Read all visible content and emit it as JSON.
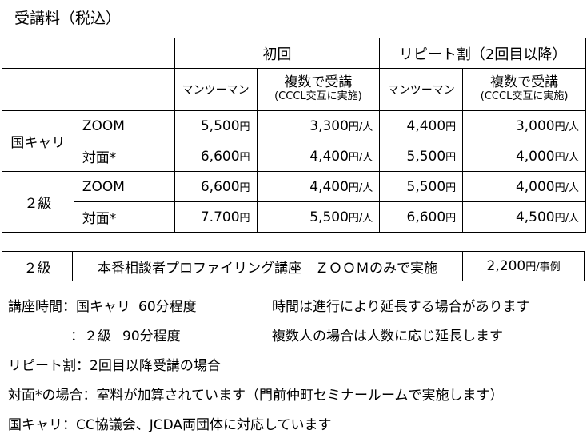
{
  "title": "受講料（税込）",
  "table": {
    "header_initial": "初回",
    "header_repeat": "リピート割（2回目以降）",
    "col_one_on_one": "マンツーマン",
    "col_group": "複数で受講",
    "col_group_note": "(CCCL交互に実施)",
    "groups": [
      {
        "name": "国キャリ",
        "rows": [
          {
            "mode": "ZOOM",
            "v1": "5,500",
            "v1u": "円",
            "v2": "3,300",
            "v2u": "円/人",
            "v3": "4,400",
            "v3u": "円",
            "v4": "3,000",
            "v4u": "円/人"
          },
          {
            "mode": "対面*",
            "v1": "6,600",
            "v1u": "円",
            "v2": "4,400",
            "v2u": "円/人",
            "v3": "5,500",
            "v3u": "円",
            "v4": "4,000",
            "v4u": "円/人"
          }
        ]
      },
      {
        "name": "２級",
        "rows": [
          {
            "mode": "ZOOM",
            "v1": "6,600",
            "v1u": "円",
            "v2": "4,400",
            "v2u": "円/人",
            "v3": "5,500",
            "v3u": "円",
            "v4": "4,000",
            "v4u": "円/人"
          },
          {
            "mode": "対面*",
            "v1": "7.700",
            "v1u": "円",
            "v2": "5,500",
            "v2u": "円/人",
            "v3": "6,600",
            "v3u": "円",
            "v4": "4,500",
            "v4u": "円/人"
          }
        ]
      }
    ]
  },
  "extra": {
    "level": "２級",
    "course": "本番相談者プロファイリング講座　ＺＯＯＭのみで実施",
    "price": "2,200",
    "unit": "円/事例"
  },
  "notes": {
    "time_label": "講座時間：国キャリ",
    "time_1": "60分程度",
    "time_note1": "時間は進行により延長する場合があります",
    "time_label2": "：２級",
    "time_2": "90分程度",
    "time_note2": "複数人の場合は人数に応じ延長します",
    "repeat": "リピート割：2回目以降受講の場合",
    "face": "対面*の場合：室料が加算されています（門前仲町セミナールームで実施します）",
    "kokucari": "国キャリ：CC協議会、JCDA両団体に対応しています"
  }
}
